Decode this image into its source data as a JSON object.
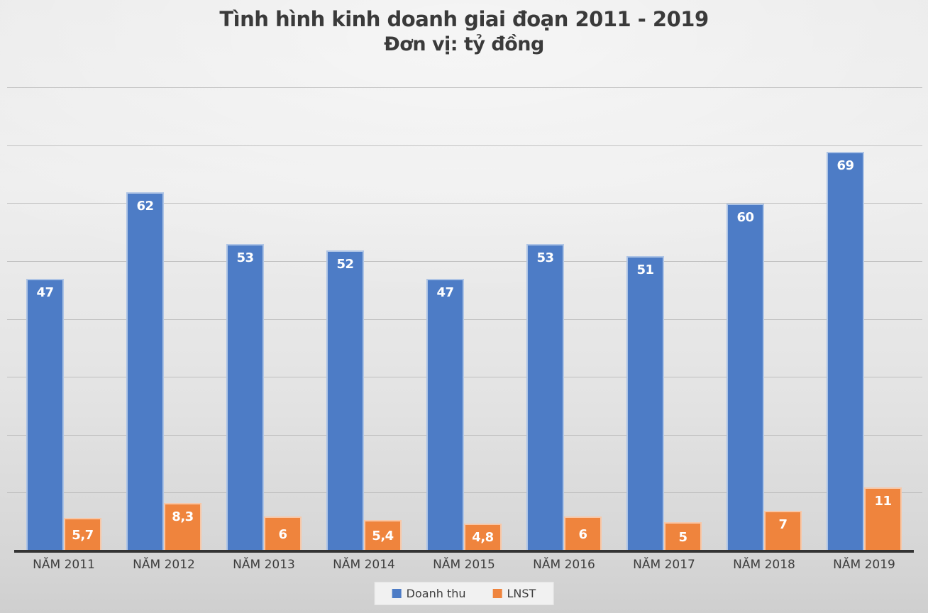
{
  "title": "Tình hình kinh doanh giai đoạn 2011 - 2019",
  "subtitle": "Đơn vị: tỷ đồng",
  "colors": {
    "revenue": "#4d7cc6",
    "profit": "#ef843d",
    "axis": "#333333",
    "gridline": "#a9a9a9",
    "text": "#3d3d3d"
  },
  "chart_data": {
    "type": "bar",
    "title": "Tình hình kinh doanh giai đoạn 2011 - 2019",
    "subtitle": "Đơn vị: tỷ đồng",
    "categories": [
      "NĂM 2011",
      "NĂM 2012",
      "NĂM 2013",
      "NĂM 2014",
      "NĂM 2015",
      "NĂM 2016",
      "NĂM 2017",
      "NĂM 2018",
      "NĂM 2019"
    ],
    "series": [
      {
        "name": "Doanh thu",
        "color": "#4d7cc6",
        "values": [
          47,
          62,
          53,
          52,
          47,
          53,
          51,
          60,
          69
        ],
        "labels": [
          "47",
          "62",
          "53",
          "52",
          "47",
          "53",
          "51",
          "60",
          "69"
        ]
      },
      {
        "name": "LNST",
        "color": "#ef843d",
        "values": [
          5.7,
          8.3,
          6,
          5.4,
          4.8,
          6,
          5,
          7,
          11
        ],
        "labels": [
          "5,7",
          "8,3",
          "6",
          "5,4",
          "4,8",
          "6",
          "5",
          "7",
          "11"
        ]
      }
    ],
    "ylim": [
      0,
      80
    ],
    "grid": true,
    "gridline_step": 10,
    "y_axis_labels_visible": false,
    "data_labels": "inside-end, white bold",
    "legend_position": "bottom"
  }
}
